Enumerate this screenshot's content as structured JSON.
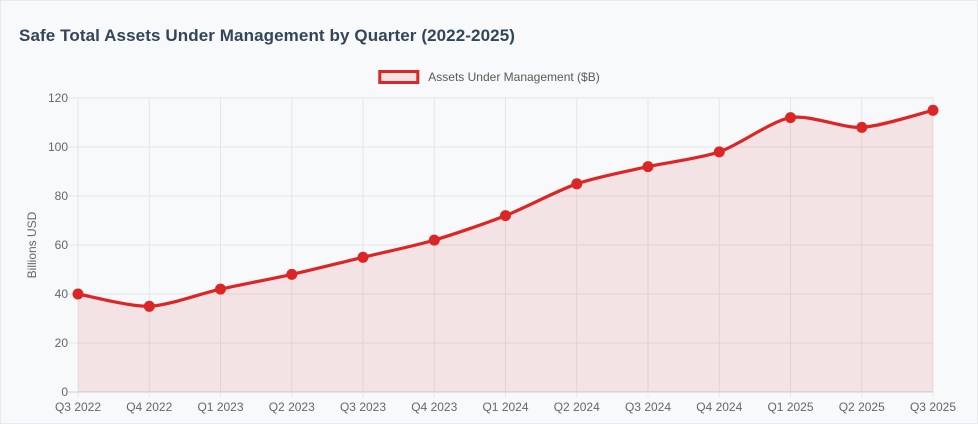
{
  "header": {
    "title": "Safe Total Assets Under Management by Quarter (2022-2025)"
  },
  "legend": {
    "label": "Assets Under Management ($B)"
  },
  "chart_data": {
    "type": "area",
    "title": "Safe Total Assets Under Management by Quarter (2022-2025)",
    "categories": [
      "Q3 2022",
      "Q4 2022",
      "Q1 2023",
      "Q2 2023",
      "Q3 2023",
      "Q4 2023",
      "Q1 2024",
      "Q2 2024",
      "Q3 2024",
      "Q4 2024",
      "Q1 2025",
      "Q2 2025",
      "Q3 2025"
    ],
    "series": [
      {
        "name": "Assets Under Management ($B)",
        "values": [
          40,
          35,
          42,
          48,
          55,
          62,
          72,
          85,
          92,
          98,
          112,
          108,
          115
        ]
      }
    ],
    "xlabel": "",
    "ylabel": "Billions USD",
    "ylim": [
      0,
      120
    ],
    "y_ticks": [
      0,
      20,
      40,
      60,
      80,
      100,
      120
    ],
    "grid": true,
    "legend_position": "top-center",
    "colors": {
      "line": "#dc2626",
      "point": "#dc2626",
      "fill": "rgba(220,38,38,0.10)",
      "grid": "#e3e5e8",
      "zero_line": "#cdd1d6",
      "axis_text": "#666666",
      "title_text": "#32455a",
      "background": "#f8f9fa"
    }
  }
}
